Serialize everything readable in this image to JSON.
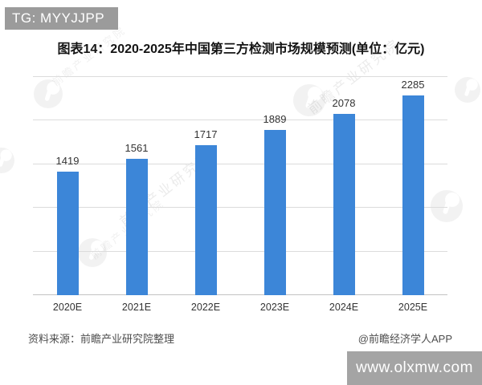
{
  "badge": {
    "label": "TG: MYYJJPP",
    "bg_color": "#9b9b9b"
  },
  "title": "图表14：2020-2025年中国第三方检测市场规模预测(单位：亿元)",
  "chart_data": {
    "type": "bar",
    "categories": [
      "2020E",
      "2021E",
      "2022E",
      "2023E",
      "2024E",
      "2025E"
    ],
    "values": [
      1419,
      1561,
      1717,
      1889,
      2078,
      2285
    ],
    "title": "图表14：2020-2025年中国第三方检测市场规模预测(单位：亿元)",
    "xlabel": "",
    "ylabel": "",
    "unit": "亿元",
    "ylim": [
      0,
      2500
    ],
    "grid_interval": 500,
    "grid": "horizontal gridlines only, no y-axis tick labels",
    "legend": "none",
    "bar_color": "#3c86d8",
    "value_labels_shown": true
  },
  "footer": {
    "source": "资料来源：前瞻产业研究院整理",
    "credit": "@前瞻经济学人APP"
  },
  "watermarks": {
    "site": "www.olxmw.com",
    "logo_text": "前瞻产业研究院",
    "logo_color": "#888888"
  }
}
